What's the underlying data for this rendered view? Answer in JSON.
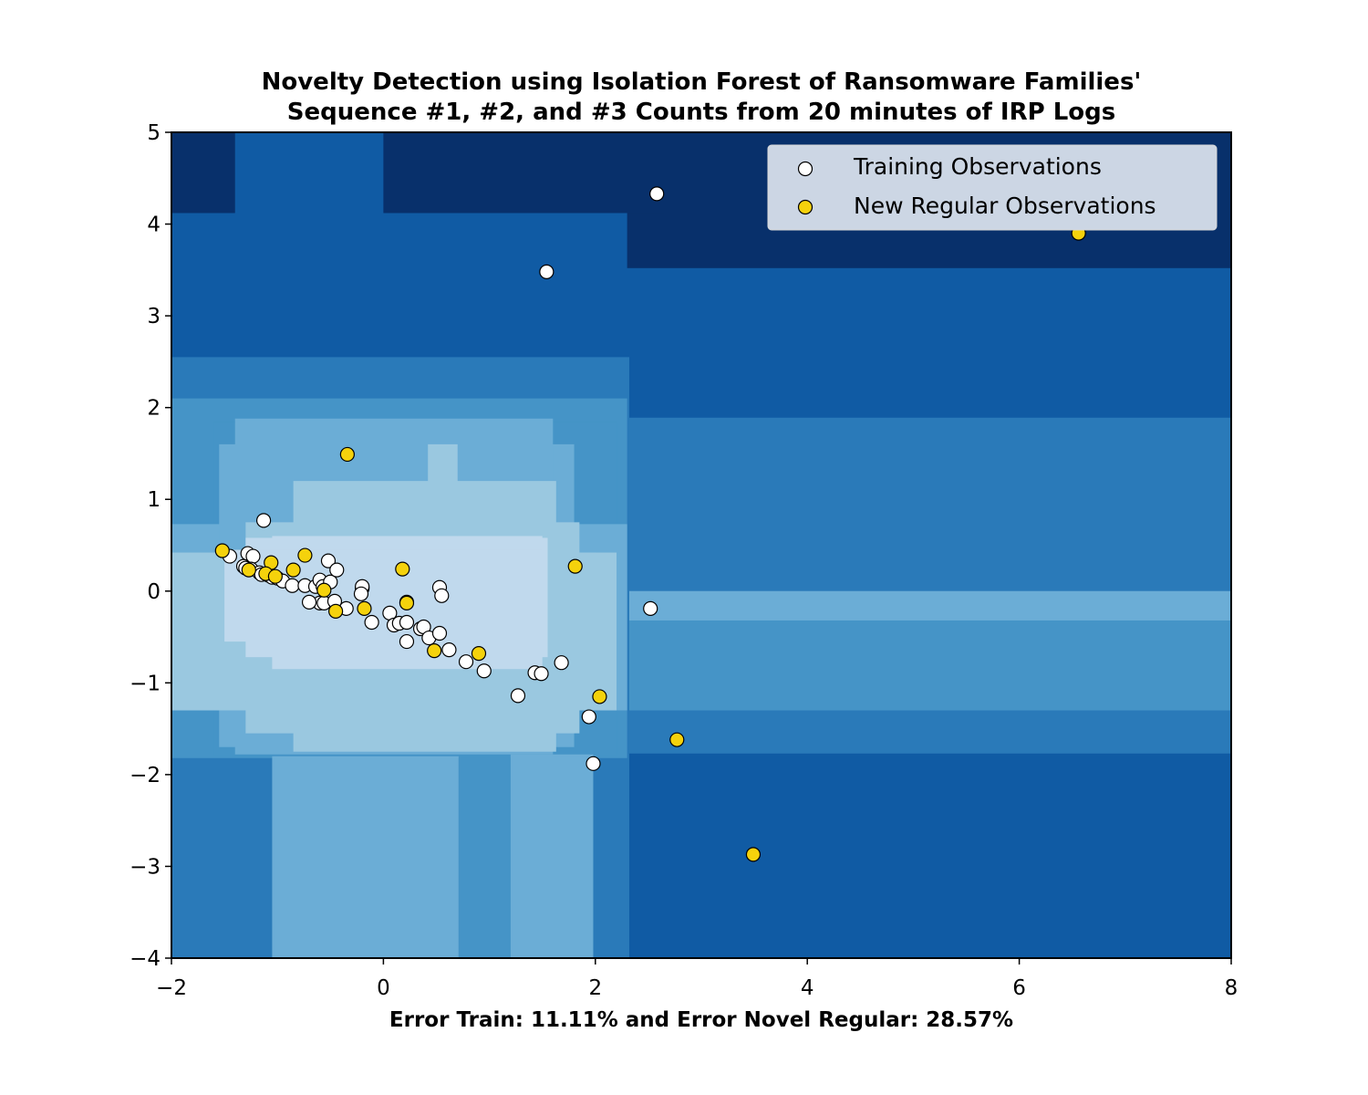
{
  "chart_data": {
    "type": "scatter",
    "title_lines": [
      "Novelty Detection using Isolation Forest of Ransomware Families'",
      "Sequence #1, #2, and #3 Counts from 20 minutes of IRP Logs"
    ],
    "xlabel": "Error Train: 11.11% and Error Novel Regular: 28.57%",
    "ylabel": "",
    "xlim": [
      -2,
      8
    ],
    "ylim": [
      -4,
      5
    ],
    "xticks": [
      -2,
      0,
      2,
      4,
      6,
      8
    ],
    "yticks": [
      -4,
      -3,
      -2,
      -1,
      0,
      1,
      2,
      3,
      4,
      5
    ],
    "xtick_labels": [
      "−2",
      "0",
      "2",
      "4",
      "6",
      "8"
    ],
    "ytick_labels": [
      "−4",
      "−3",
      "−2",
      "−1",
      "0",
      "1",
      "2",
      "3",
      "4",
      "5"
    ],
    "legend_position": "top-right",
    "background": {
      "type": "filled-contour",
      "colormap": "Blues_r",
      "level_colors": [
        "#08306b",
        "#105ba4",
        "#2a7ab9",
        "#4594c7",
        "#6badd6",
        "#9ac8e0",
        "#c0d9ed"
      ]
    },
    "series": [
      {
        "name": "Training Observations",
        "color": "#ffffff",
        "points": [
          [
            2.58,
            4.33
          ],
          [
            1.54,
            3.48
          ],
          [
            -1.13,
            0.77
          ],
          [
            -1.45,
            0.38
          ],
          [
            -1.28,
            0.41
          ],
          [
            -1.23,
            0.38
          ],
          [
            -1.32,
            0.27
          ],
          [
            -1.3,
            0.25
          ],
          [
            -1.25,
            0.24
          ],
          [
            -1.17,
            0.2
          ],
          [
            -1.15,
            0.18
          ],
          [
            -1.08,
            0.17
          ],
          [
            -1.05,
            0.15
          ],
          [
            -1.0,
            0.14
          ],
          [
            -0.95,
            0.11
          ],
          [
            -0.86,
            0.06
          ],
          [
            -0.74,
            0.06
          ],
          [
            -0.64,
            0.05
          ],
          [
            -0.6,
            0.12
          ],
          [
            -0.57,
            0.05
          ],
          [
            -0.5,
            0.1
          ],
          [
            -0.52,
            0.33
          ],
          [
            -0.44,
            0.23
          ],
          [
            -0.35,
            -0.19
          ],
          [
            -0.2,
            0.03
          ],
          [
            -0.2,
            0.05
          ],
          [
            -0.21,
            -0.03
          ],
          [
            -0.11,
            -0.34
          ],
          [
            -0.6,
            -0.13
          ],
          [
            -0.56,
            -0.13
          ],
          [
            -0.7,
            -0.12
          ],
          [
            -0.46,
            -0.11
          ],
          [
            0.06,
            -0.24
          ],
          [
            0.1,
            -0.37
          ],
          [
            0.15,
            -0.35
          ],
          [
            0.22,
            -0.34
          ],
          [
            0.22,
            -0.12
          ],
          [
            0.22,
            -0.55
          ],
          [
            0.35,
            -0.41
          ],
          [
            0.38,
            -0.39
          ],
          [
            0.43,
            -0.51
          ],
          [
            0.53,
            -0.46
          ],
          [
            0.53,
            0.04
          ],
          [
            0.55,
            -0.05
          ],
          [
            0.62,
            -0.64
          ],
          [
            0.78,
            -0.77
          ],
          [
            0.95,
            -0.87
          ],
          [
            1.27,
            -1.14
          ],
          [
            1.43,
            -0.89
          ],
          [
            1.49,
            -0.9
          ],
          [
            1.68,
            -0.78
          ],
          [
            1.94,
            -1.37
          ],
          [
            1.98,
            -1.88
          ],
          [
            2.52,
            -0.19
          ]
        ]
      },
      {
        "name": "New Regular Observations",
        "color": "#f5d20c",
        "points": [
          [
            6.56,
            3.9
          ],
          [
            -0.34,
            1.49
          ],
          [
            -1.52,
            0.44
          ],
          [
            -1.06,
            0.31
          ],
          [
            -0.74,
            0.39
          ],
          [
            -1.27,
            0.23
          ],
          [
            -0.85,
            0.23
          ],
          [
            -1.11,
            0.19
          ],
          [
            -1.02,
            0.16
          ],
          [
            -0.56,
            0.01
          ],
          [
            -0.45,
            -0.22
          ],
          [
            -0.18,
            -0.19
          ],
          [
            0.18,
            0.24
          ],
          [
            0.22,
            -0.13
          ],
          [
            0.48,
            -0.65
          ],
          [
            0.9,
            -0.68
          ],
          [
            1.81,
            0.27
          ],
          [
            2.04,
            -1.15
          ],
          [
            2.77,
            -1.62
          ],
          [
            3.49,
            -2.87
          ]
        ]
      }
    ]
  }
}
